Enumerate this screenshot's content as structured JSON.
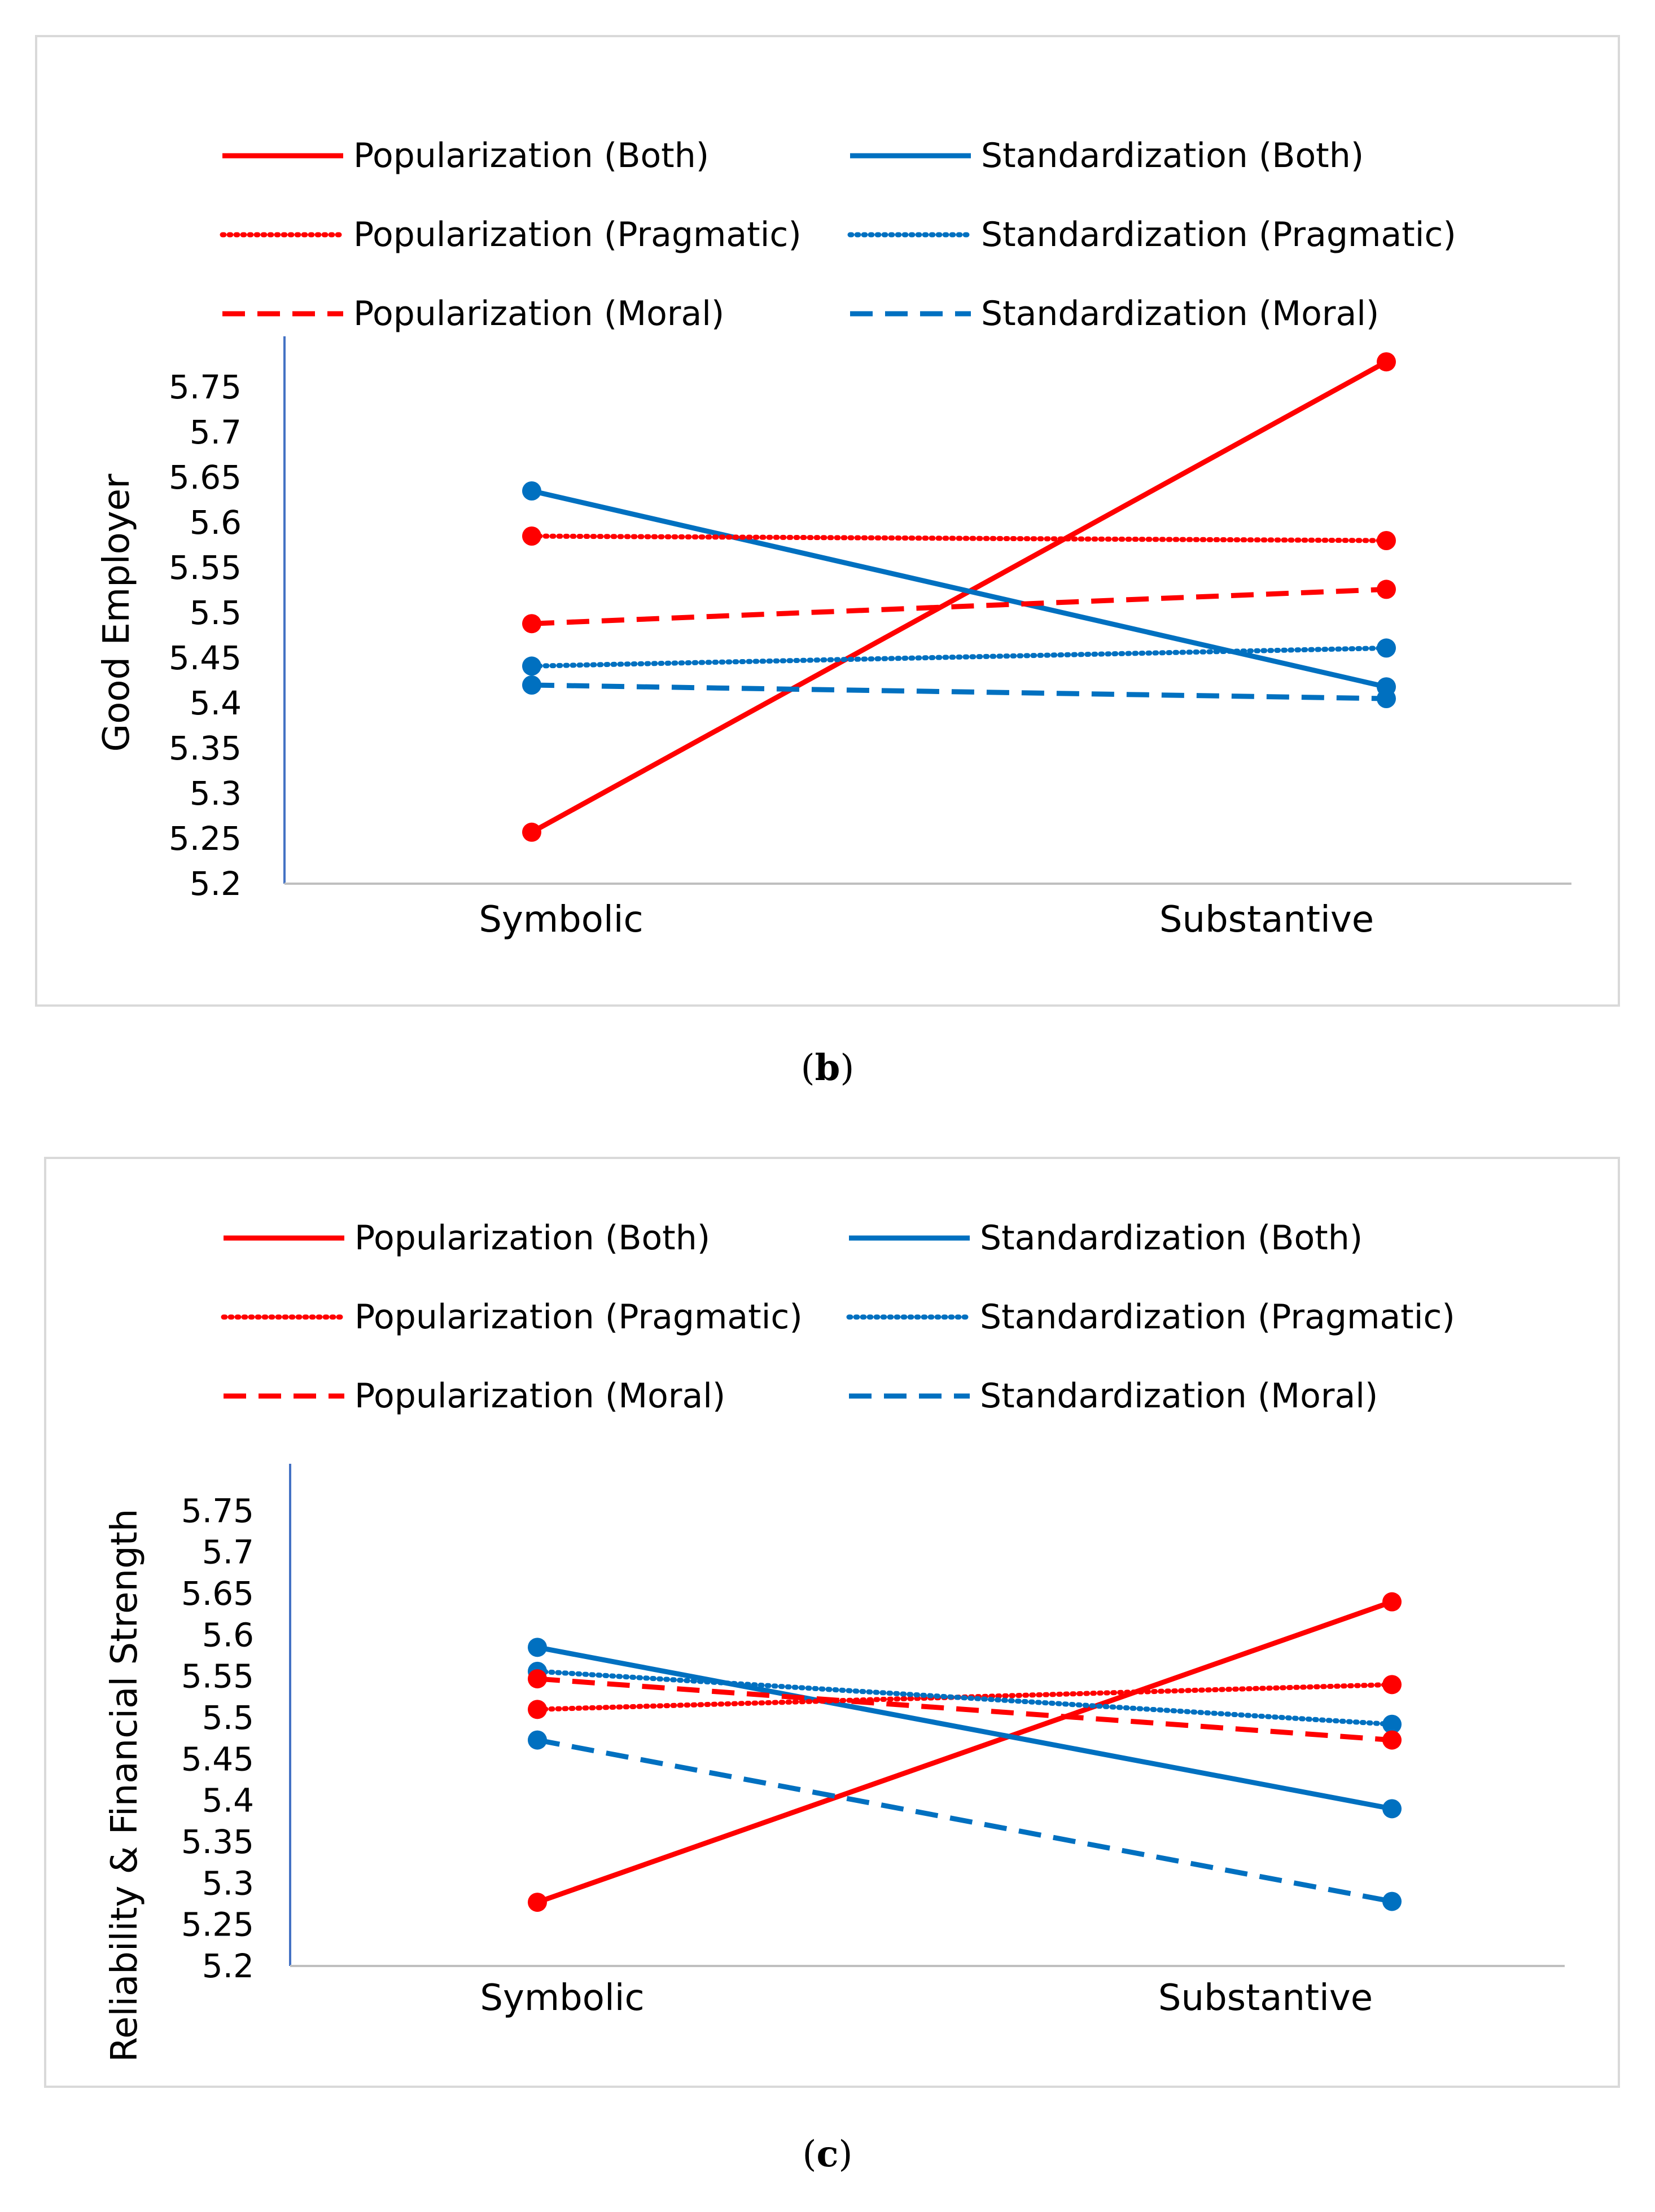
{
  "chart_data": [
    {
      "type": "line",
      "panel_label": "b",
      "ylabel": "Good Employer",
      "categories": [
        "Symbolic",
        "Substantive"
      ],
      "yticks": [
        "5.2",
        "5.25",
        "5.3",
        "5.35",
        "5.4",
        "5.45",
        "5.5",
        "5.55",
        "5.6",
        "5.65",
        "5.7",
        "5.75"
      ],
      "ylim": [
        5.2,
        5.8
      ],
      "grid": false,
      "legend_position": "top",
      "series": [
        {
          "name": "Popularization (Both)",
          "color": "#ff0000",
          "style": "solid",
          "values": [
            5.257,
            5.778
          ]
        },
        {
          "name": "Standardization (Both)",
          "color": "#0070c0",
          "style": "solid",
          "values": [
            5.635,
            5.418
          ]
        },
        {
          "name": "Popularization (Pragmatic)",
          "color": "#ff0000",
          "style": "dotted",
          "values": [
            5.585,
            5.58
          ]
        },
        {
          "name": "Standardization (Pragmatic)",
          "color": "#0070c0",
          "style": "dotted",
          "values": [
            5.441,
            5.461
          ]
        },
        {
          "name": "Popularization (Moral)",
          "color": "#ff0000",
          "style": "dashed",
          "values": [
            5.488,
            5.526
          ]
        },
        {
          "name": "Standardization (Moral)",
          "color": "#0070c0",
          "style": "dashed",
          "values": [
            5.42,
            5.405
          ]
        }
      ]
    },
    {
      "type": "line",
      "panel_label": "c",
      "ylabel": "Reliability & Financial Strength",
      "categories": [
        "Symbolic",
        "Substantive"
      ],
      "yticks": [
        "5.2",
        "5.25",
        "5.3",
        "5.35",
        "5.4",
        "5.45",
        "5.5",
        "5.55",
        "5.6",
        "5.65",
        "5.7",
        "5.75"
      ],
      "ylim": [
        5.2,
        5.8
      ],
      "grid": false,
      "legend_position": "top",
      "series": [
        {
          "name": "Popularization (Both)",
          "color": "#ff0000",
          "style": "solid",
          "values": [
            5.277,
            5.64
          ]
        },
        {
          "name": "Standardization (Both)",
          "color": "#0070c0",
          "style": "solid",
          "values": [
            5.585,
            5.39
          ]
        },
        {
          "name": "Popularization (Pragmatic)",
          "color": "#ff0000",
          "style": "dotted",
          "values": [
            5.51,
            5.54
          ]
        },
        {
          "name": "Standardization (Pragmatic)",
          "color": "#0070c0",
          "style": "dotted",
          "values": [
            5.556,
            5.492
          ]
        },
        {
          "name": "Popularization (Moral)",
          "color": "#ff0000",
          "style": "dashed",
          "values": [
            5.547,
            5.473
          ]
        },
        {
          "name": "Standardization (Moral)",
          "color": "#0070c0",
          "style": "dashed",
          "values": [
            5.473,
            5.278
          ]
        }
      ]
    }
  ],
  "captions": {
    "b": "(b)",
    "c": "(c)"
  }
}
